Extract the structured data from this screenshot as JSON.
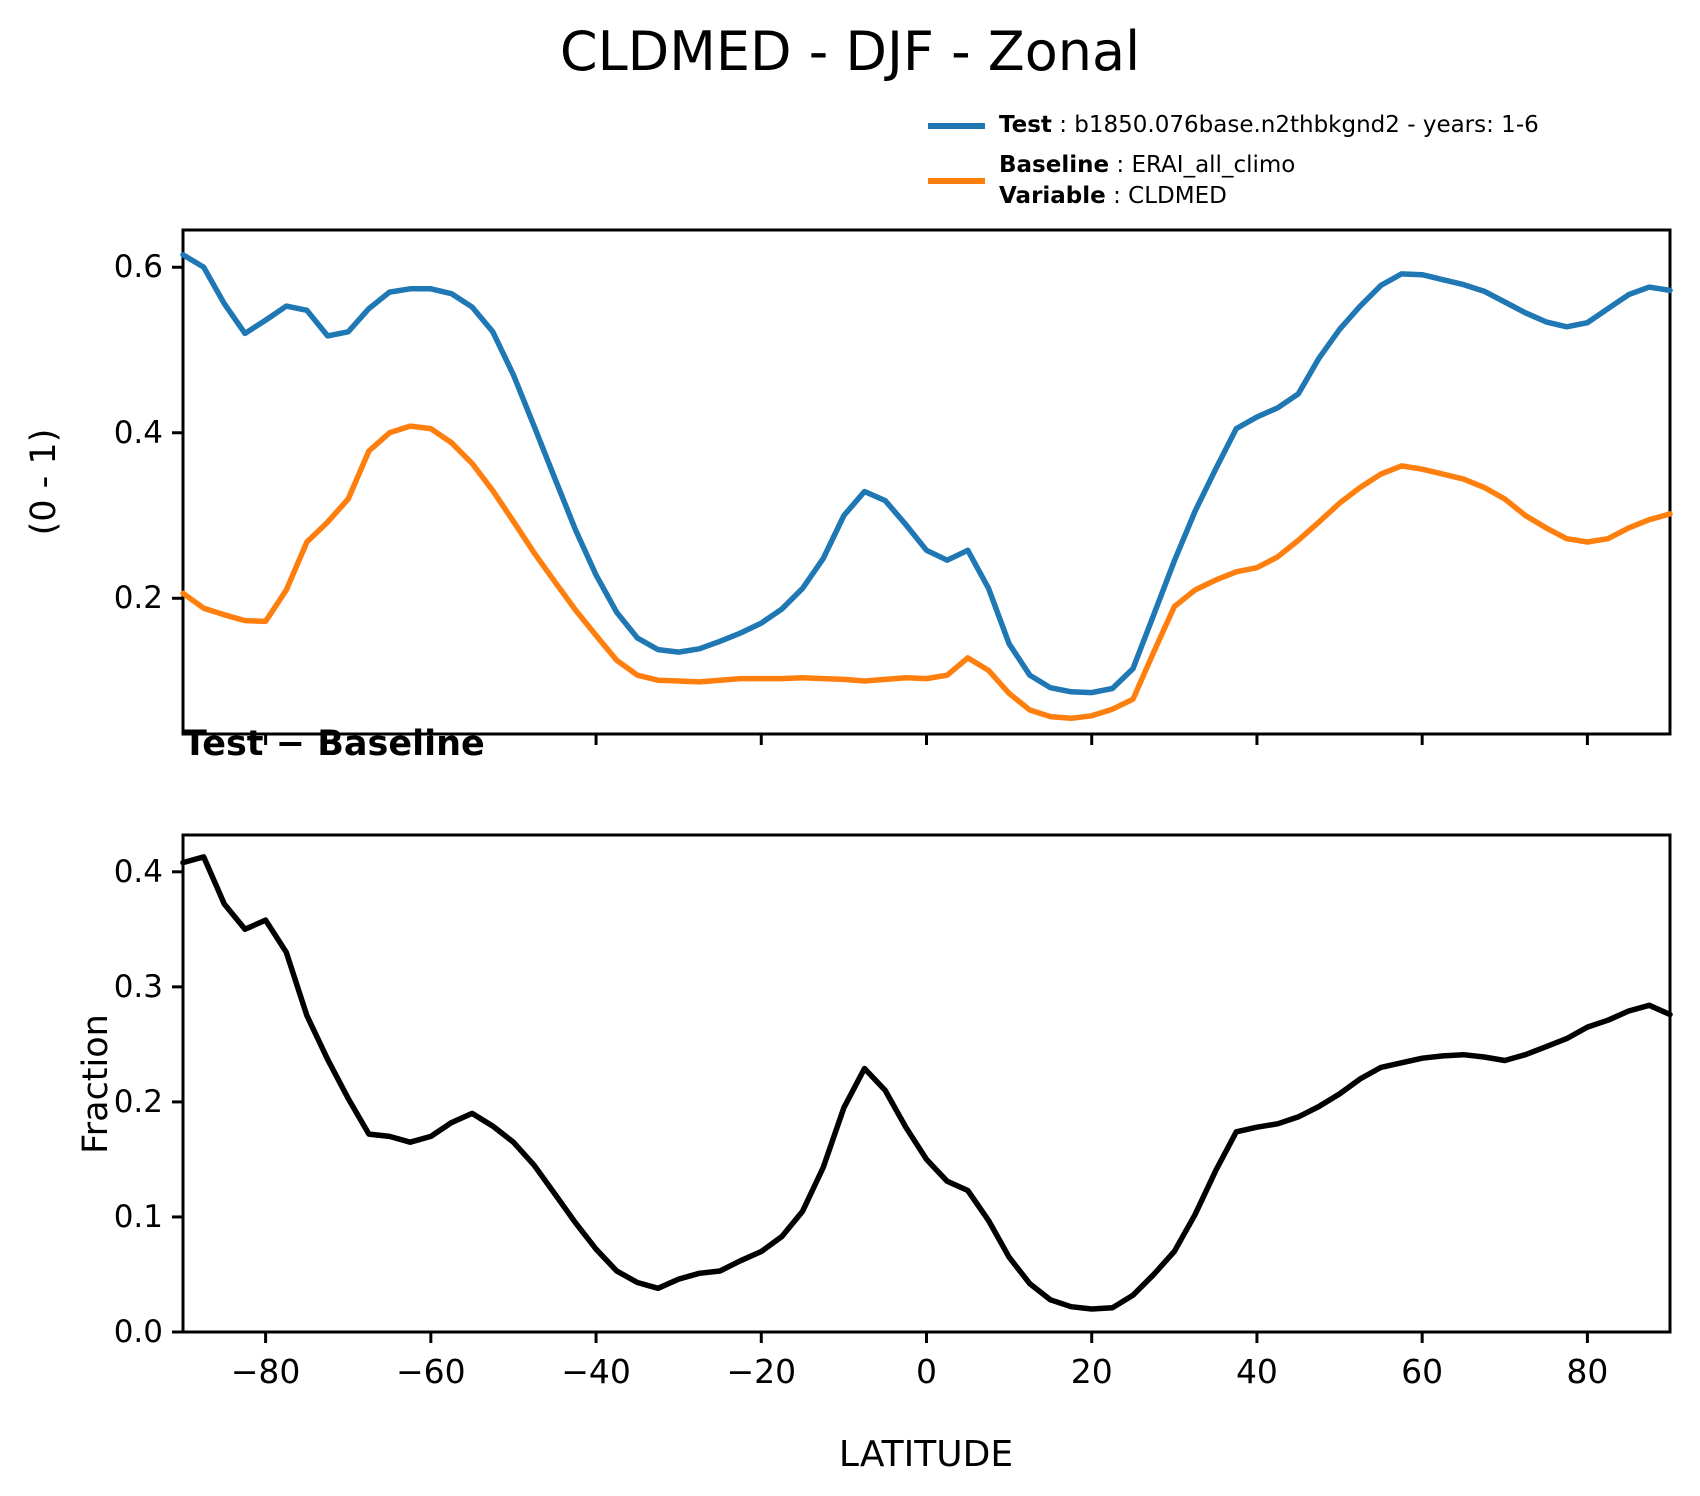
{
  "title": "CLDMED - DJF - Zonal",
  "legend": {
    "position": "top-right",
    "test": {
      "label": "Test",
      "value": " : b1850.076base.n2thbkgnd2 - years: 1-6",
      "color": "#1f77b4"
    },
    "baseline": {
      "label": "Baseline",
      "value": " : ERAI_all_climo",
      "color": "#ff7f0e"
    },
    "variable": {
      "label": "Variable",
      "value": " : CLDMED"
    }
  },
  "chart_data": [
    {
      "type": "line",
      "title": "",
      "xlabel": "",
      "ylabel": "(0 - 1)",
      "xlim": [
        -90,
        90
      ],
      "ylim": [
        0.036,
        0.645
      ],
      "grid": false,
      "legend_position": "top-right outside axes",
      "yticks": [
        0.2,
        0.4,
        0.6
      ],
      "ytick_labels": [
        "0.2",
        "0.4",
        "0.6"
      ],
      "xticks": [
        -80,
        -60,
        -40,
        -20,
        0,
        20,
        40,
        60,
        80
      ],
      "xtick_labels": [],
      "x": [
        -90,
        -87.5,
        -85,
        -82.5,
        -80,
        -77.5,
        -75,
        -72.5,
        -70,
        -67.5,
        -65,
        -62.5,
        -60,
        -57.5,
        -55,
        -52.5,
        -50,
        -47.5,
        -45,
        -42.5,
        -40,
        -37.5,
        -35,
        -32.5,
        -30,
        -27.5,
        -25,
        -22.5,
        -20,
        -17.5,
        -15,
        -12.5,
        -10,
        -7.5,
        -5,
        -2.5,
        0,
        2.5,
        5,
        7.5,
        10,
        12.5,
        15,
        17.5,
        20,
        22.5,
        25,
        27.5,
        30,
        32.5,
        35,
        37.5,
        40,
        42.5,
        45,
        47.5,
        50,
        52.5,
        55,
        57.5,
        60,
        62.5,
        65,
        67.5,
        70,
        72.5,
        75,
        77.5,
        80,
        82.5,
        85,
        87.5,
        90
      ],
      "series": [
        {
          "name": "Test",
          "color": "#1f77b4",
          "values": [
            0.615,
            0.6,
            0.556,
            0.52,
            0.536,
            0.553,
            0.548,
            0.517,
            0.522,
            0.55,
            0.57,
            0.574,
            0.574,
            0.568,
            0.552,
            0.522,
            0.47,
            0.408,
            0.345,
            0.283,
            0.228,
            0.183,
            0.152,
            0.138,
            0.135,
            0.139,
            0.148,
            0.158,
            0.17,
            0.187,
            0.212,
            0.248,
            0.3,
            0.329,
            0.318,
            0.289,
            0.258,
            0.246,
            0.258,
            0.212,
            0.145,
            0.107,
            0.092,
            0.087,
            0.086,
            0.091,
            0.115,
            0.18,
            0.245,
            0.305,
            0.356,
            0.405,
            0.419,
            0.43,
            0.447,
            0.49,
            0.525,
            0.553,
            0.578,
            0.592,
            0.591,
            0.585,
            0.579,
            0.571,
            0.558,
            0.545,
            0.534,
            0.528,
            0.533,
            0.55,
            0.567,
            0.576,
            0.572
          ]
        },
        {
          "name": "Baseline",
          "color": "#ff7f0e",
          "values": [
            0.206,
            0.188,
            0.18,
            0.173,
            0.172,
            0.21,
            0.268,
            0.292,
            0.32,
            0.378,
            0.4,
            0.408,
            0.405,
            0.388,
            0.363,
            0.33,
            0.293,
            0.255,
            0.22,
            0.186,
            0.155,
            0.125,
            0.107,
            0.101,
            0.1,
            0.099,
            0.101,
            0.103,
            0.103,
            0.103,
            0.104,
            0.103,
            0.102,
            0.1,
            0.102,
            0.104,
            0.103,
            0.107,
            0.128,
            0.113,
            0.085,
            0.065,
            0.057,
            0.055,
            0.058,
            0.066,
            0.078,
            0.135,
            0.19,
            0.21,
            0.222,
            0.232,
            0.237,
            0.25,
            0.27,
            0.292,
            0.315,
            0.334,
            0.35,
            0.36,
            0.356,
            0.35,
            0.344,
            0.334,
            0.32,
            0.3,
            0.285,
            0.272,
            0.268,
            0.272,
            0.285,
            0.295,
            0.302
          ]
        }
      ]
    },
    {
      "type": "line",
      "title": "Test − Baseline",
      "xlabel": "LATITUDE",
      "ylabel": "Fraction",
      "xlim": [
        -90,
        90
      ],
      "ylim": [
        0.0,
        0.432
      ],
      "grid": false,
      "yticks": [
        0.0,
        0.1,
        0.2,
        0.3,
        0.4
      ],
      "ytick_labels": [
        "0.0",
        "0.1",
        "0.2",
        "0.3",
        "0.4"
      ],
      "xticks": [
        -80,
        -60,
        -40,
        -20,
        0,
        20,
        40,
        60,
        80
      ],
      "xtick_labels": [
        "−80",
        "−60",
        "−40",
        "−20",
        "0",
        "20",
        "40",
        "60",
        "80"
      ],
      "x": [
        -90,
        -87.5,
        -85,
        -82.5,
        -80,
        -77.5,
        -75,
        -72.5,
        -70,
        -67.5,
        -65,
        -62.5,
        -60,
        -57.5,
        -55,
        -52.5,
        -50,
        -47.5,
        -45,
        -42.5,
        -40,
        -37.5,
        -35,
        -32.5,
        -30,
        -27.5,
        -25,
        -22.5,
        -20,
        -17.5,
        -15,
        -12.5,
        -10,
        -7.5,
        -5,
        -2.5,
        0,
        2.5,
        5,
        7.5,
        10,
        12.5,
        15,
        17.5,
        20,
        22.5,
        25,
        27.5,
        30,
        32.5,
        35,
        37.5,
        40,
        42.5,
        45,
        47.5,
        50,
        52.5,
        55,
        57.5,
        60,
        62.5,
        65,
        67.5,
        70,
        72.5,
        75,
        77.5,
        80,
        82.5,
        85,
        87.5,
        90
      ],
      "series": [
        {
          "name": "Test − Baseline",
          "color": "#000000",
          "values": [
            0.408,
            0.413,
            0.372,
            0.35,
            0.358,
            0.33,
            0.275,
            0.237,
            0.203,
            0.172,
            0.17,
            0.165,
            0.17,
            0.182,
            0.19,
            0.179,
            0.165,
            0.145,
            0.12,
            0.095,
            0.072,
            0.053,
            0.043,
            0.038,
            0.046,
            0.051,
            0.053,
            0.062,
            0.07,
            0.083,
            0.105,
            0.143,
            0.195,
            0.229,
            0.21,
            0.178,
            0.15,
            0.131,
            0.123,
            0.097,
            0.065,
            0.042,
            0.028,
            0.022,
            0.02,
            0.021,
            0.032,
            0.05,
            0.07,
            0.102,
            0.14,
            0.174,
            0.178,
            0.181,
            0.187,
            0.196,
            0.207,
            0.22,
            0.23,
            0.234,
            0.238,
            0.24,
            0.241,
            0.239,
            0.236,
            0.241,
            0.248,
            0.255,
            0.265,
            0.271,
            0.279,
            0.284,
            0.276
          ]
        }
      ]
    }
  ]
}
